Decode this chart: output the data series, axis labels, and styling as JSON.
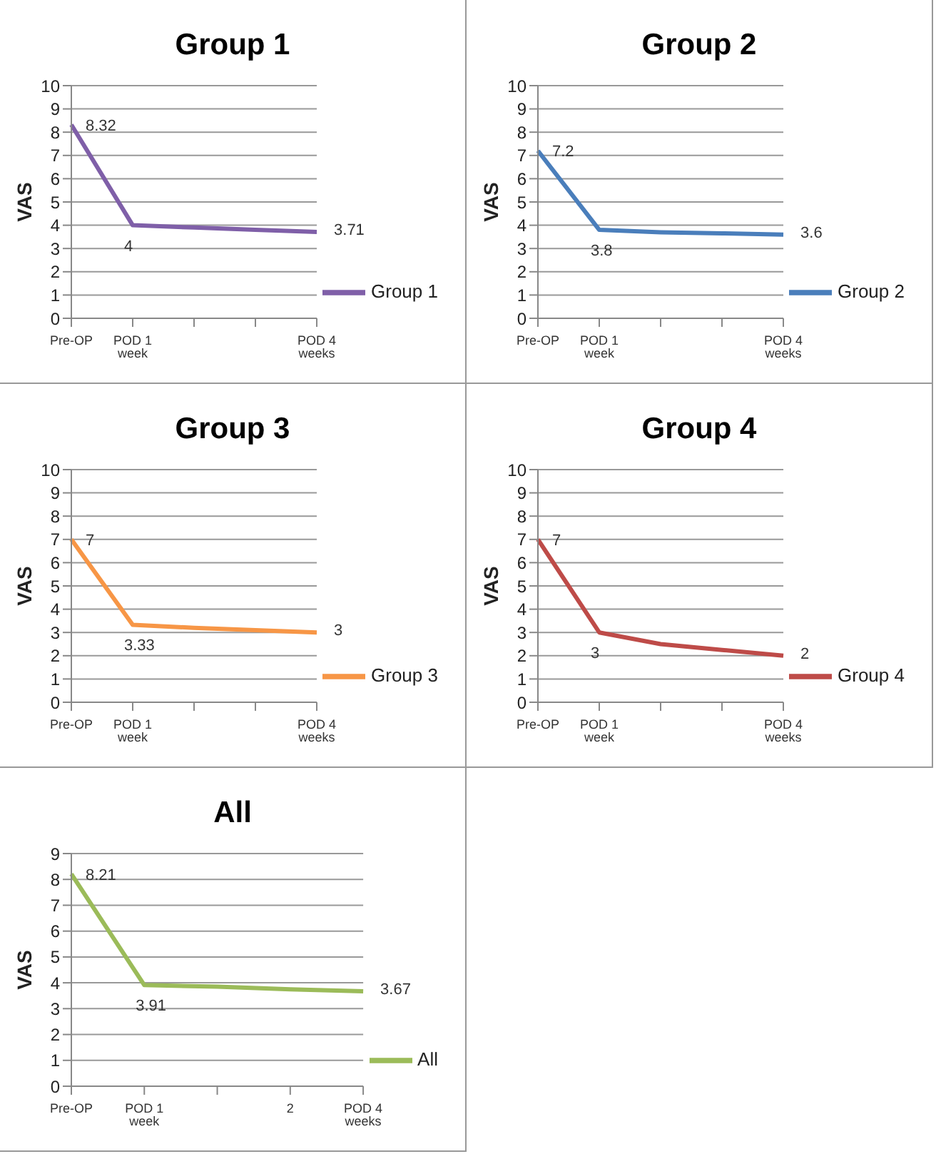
{
  "chart_data": [
    {
      "type": "line",
      "title": "Group 1",
      "ylabel": "VAS",
      "categories": [
        "Pre-OP",
        "POD 1 week",
        null,
        null,
        "POD 4 weeks"
      ],
      "series": [
        {
          "name": "Group 1",
          "color": "#7f5fa8",
          "values": [
            8.32,
            4,
            3.9,
            3.8,
            3.71
          ],
          "value_labels": [
            "8.32",
            "4",
            null,
            null,
            "3.71"
          ]
        }
      ],
      "ylim": [
        0,
        10
      ],
      "yticks": [
        0,
        1,
        2,
        3,
        4,
        5,
        6,
        7,
        8,
        9,
        10
      ],
      "grid": "y",
      "legend": "right",
      "marker": "none",
      "line_style": "solid"
    },
    {
      "type": "line",
      "title": "Group 2",
      "ylabel": "VAS",
      "categories": [
        "Pre-OP",
        "POD 1 week",
        null,
        null,
        "POD 4 weeks"
      ],
      "series": [
        {
          "name": "Group 2",
          "color": "#4a7ebb",
          "values": [
            7.2,
            3.8,
            3.7,
            3.65,
            3.6
          ],
          "value_labels": [
            "7.2",
            "3.8",
            null,
            null,
            "3.6"
          ]
        }
      ],
      "ylim": [
        0,
        10
      ],
      "yticks": [
        0,
        1,
        2,
        3,
        4,
        5,
        6,
        7,
        8,
        9,
        10
      ],
      "grid": "y",
      "legend": "right",
      "marker": "none",
      "line_style": "solid"
    },
    {
      "type": "line",
      "title": "Group 3",
      "ylabel": "VAS",
      "categories": [
        "Pre-OP",
        "POD 1 week",
        null,
        null,
        "POD 4 weeks"
      ],
      "series": [
        {
          "name": "Group 3",
          "color": "#f79646",
          "values": [
            7,
            3.33,
            3.2,
            3.1,
            3
          ],
          "value_labels": [
            "7",
            "3.33",
            null,
            null,
            "3"
          ]
        }
      ],
      "ylim": [
        0,
        10
      ],
      "yticks": [
        0,
        1,
        2,
        3,
        4,
        5,
        6,
        7,
        8,
        9,
        10
      ],
      "grid": "y",
      "legend": "right",
      "marker": "none",
      "line_style": "solid"
    },
    {
      "type": "line",
      "title": "Group 4",
      "ylabel": "VAS",
      "categories": [
        "Pre-OP",
        "POD 1 week",
        null,
        null,
        "POD 4 weeks"
      ],
      "series": [
        {
          "name": "Group 4",
          "color": "#be4b48",
          "values": [
            7,
            3,
            2.5,
            2.25,
            2
          ],
          "value_labels": [
            "7",
            "3",
            null,
            null,
            "2"
          ]
        }
      ],
      "ylim": [
        0,
        10
      ],
      "yticks": [
        0,
        1,
        2,
        3,
        4,
        5,
        6,
        7,
        8,
        9,
        10
      ],
      "grid": "y",
      "legend": "right",
      "marker": "none",
      "line_style": "solid"
    },
    {
      "type": "line",
      "title": "All",
      "ylabel": "VAS",
      "categories": [
        "Pre-OP",
        "POD 1 week",
        null,
        "2",
        "POD 4 weeks"
      ],
      "series": [
        {
          "name": "All",
          "color": "#9bbb59",
          "values": [
            8.21,
            3.91,
            3.85,
            3.75,
            3.67
          ],
          "value_labels": [
            "8.21",
            "3.91",
            null,
            null,
            "3.67"
          ]
        }
      ],
      "ylim": [
        0,
        9
      ],
      "yticks": [
        0,
        1,
        2,
        3,
        4,
        5,
        6,
        7,
        8,
        9
      ],
      "grid": "y",
      "legend": "right",
      "marker": "none",
      "line_style": "solid"
    }
  ]
}
